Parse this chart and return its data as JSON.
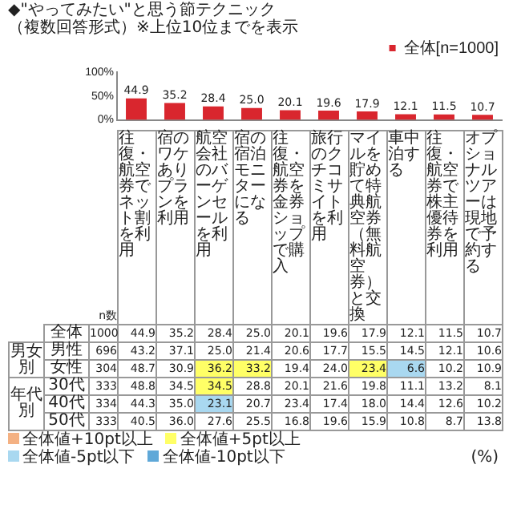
{
  "chart_data": [
    {
      "type": "bar",
      "title": "◆\"やってみたい\"と思う節テクニック",
      "subtitle": "（複数回答形式）※上位10位までを表示",
      "categories": [
        null,
        null,
        null,
        null,
        null,
        null,
        null,
        null,
        null,
        null
      ],
      "series": [
        {
          "name": "全体[n=1000]",
          "color": "#d9262e",
          "values": [
            44.9,
            35.2,
            28.4,
            25.0,
            20.1,
            19.6,
            17.9,
            12.1,
            11.5,
            10.7
          ],
          "value_labels": [
            "44.9",
            "35.2",
            "28.4",
            "25.0",
            "20.1",
            "19.6",
            "17.9",
            "12.1",
            "11.5",
            "10.7"
          ]
        }
      ],
      "ylim": [
        0,
        100
      ],
      "yticks": [
        {
          "value": 0,
          "label": "0%"
        },
        {
          "value": 50,
          "label": "50%"
        },
        {
          "value": 100,
          "label": "100%"
        }
      ],
      "tick_labels": "y",
      "legend": "top right"
    },
    {
      "type": "heatmap",
      "categories": [
        "往復・航空券でネット割を利用",
        "宿のワケありプランを利用",
        "航空会社のバーゲンセールを利用",
        "宿の宿泊モニターになる",
        "往復・航空券を金券ショップで購入",
        "旅行のクチコミサイトを利用",
        "マイルを貯めて特典航空券（無料航空券）と交換",
        "車中泊する",
        "往復・航空券で株主優待券を利用",
        "オプショナルツアーは現地で予約する"
      ],
      "y_categories": [
        "全体",
        "男性",
        "女性",
        "30代",
        "40代",
        "50代"
      ],
      "y2_categories": [
        "1000",
        "696",
        "304",
        "333",
        "334",
        "333"
      ],
      "cells": [
        [
          44.9,
          35.2,
          28.4,
          25.0,
          20.1,
          19.6,
          17.9,
          12.1,
          11.5,
          10.7
        ],
        [
          43.2,
          37.1,
          25.0,
          21.4,
          20.6,
          17.7,
          15.5,
          14.5,
          12.1,
          10.6
        ],
        [
          48.7,
          30.9,
          36.2,
          33.2,
          19.4,
          24.0,
          23.4,
          6.6,
          10.2,
          10.9
        ],
        [
          48.8,
          34.5,
          34.5,
          28.8,
          20.1,
          21.6,
          19.8,
          11.1,
          13.2,
          8.1
        ],
        [
          44.3,
          35.0,
          23.1,
          20.7,
          23.4,
          17.4,
          18.0,
          14.4,
          12.6,
          10.2
        ],
        [
          40.5,
          36.0,
          27.6,
          25.5,
          16.8,
          19.6,
          15.9,
          10.8,
          8.7,
          13.8
        ]
      ],
      "cell_labels": [
        [
          "44.9",
          "35.2",
          "28.4",
          "25.0",
          "20.1",
          "19.6",
          "17.9",
          "12.1",
          "11.5",
          "10.7"
        ],
        [
          "43.2",
          "37.1",
          "25.0",
          "21.4",
          "20.6",
          "17.7",
          "15.5",
          "14.5",
          "12.1",
          "10.6"
        ],
        [
          "48.7",
          "30.9",
          "36.2",
          "33.2",
          "19.4",
          "24.0",
          "23.4",
          "6.6",
          "10.2",
          "10.9"
        ],
        [
          "48.8",
          "34.5",
          "34.5",
          "28.8",
          "20.1",
          "21.6",
          "19.8",
          "11.1",
          "13.2",
          "8.1"
        ],
        [
          "44.3",
          "35.0",
          "23.1",
          "20.7",
          "23.4",
          "17.4",
          "18.0",
          "14.4",
          "12.6",
          "10.2"
        ],
        [
          "40.5",
          "36.0",
          "27.6",
          "25.5",
          "16.8",
          "19.6",
          "15.9",
          "10.8",
          "8.7",
          "13.8"
        ]
      ],
      "annotations": [
        "n数",
        "男女別",
        "年代別",
        "(%)",
        "全体値+10pt以上",
        "全体値+5pt以上",
        "全体値-5pt以下",
        "全体値-10pt以下"
      ]
    }
  ]
}
